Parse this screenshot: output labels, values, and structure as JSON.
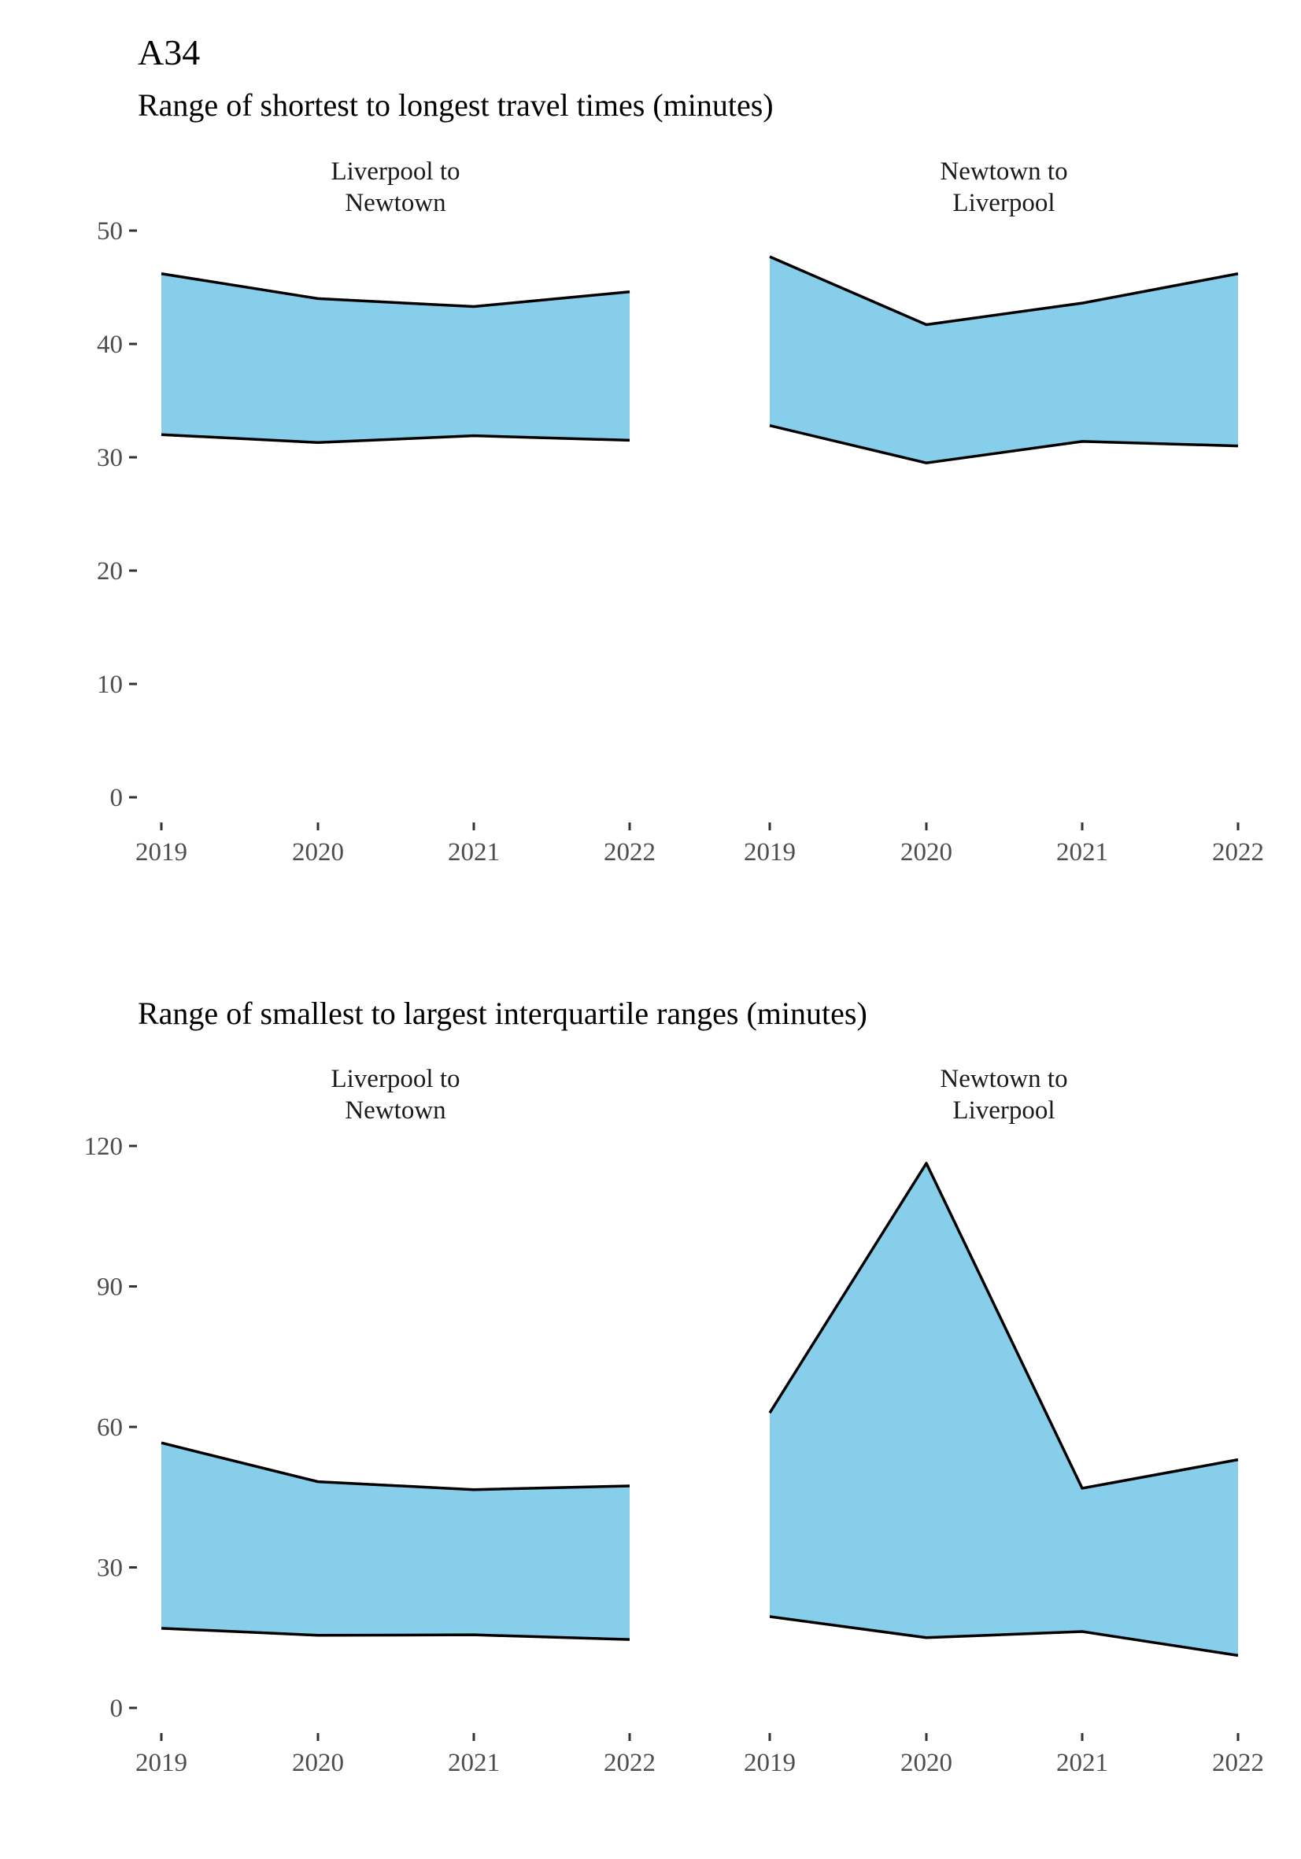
{
  "title": "A34",
  "colors": {
    "fill": "#87CEEB",
    "line": "#000000",
    "tick_text": "#4d4d4d"
  },
  "chart_data": [
    {
      "type": "area",
      "subtitle": "Range of shortest to longest travel times (minutes)",
      "ylim": [
        0,
        50
      ],
      "yticks": [
        "0",
        "10",
        "20",
        "30",
        "40",
        "50"
      ],
      "grid": false,
      "panels": [
        {
          "strip": [
            "Liverpool to",
            "Newtown"
          ],
          "x": [
            "2019",
            "2020",
            "2021",
            "2022"
          ],
          "min": [
            32.0,
            31.3,
            31.9,
            31.5
          ],
          "max": [
            46.2,
            44.0,
            43.3,
            44.6
          ]
        },
        {
          "strip": [
            "Newtown to",
            "Liverpool"
          ],
          "x": [
            "2019",
            "2020",
            "2021",
            "2022"
          ],
          "min": [
            32.8,
            29.5,
            31.4,
            31.0
          ],
          "max": [
            47.7,
            41.7,
            43.6,
            46.2
          ]
        }
      ]
    },
    {
      "type": "area",
      "subtitle": "Range of smallest to largest interquartile ranges (minutes)",
      "ylim": [
        0,
        120
      ],
      "yticks": [
        "0",
        "30",
        "60",
        "90",
        "120"
      ],
      "grid": false,
      "panels": [
        {
          "strip": [
            "Liverpool to",
            "Newtown"
          ],
          "x": [
            "2019",
            "2020",
            "2021",
            "2022"
          ],
          "min": [
            17.0,
            15.5,
            15.6,
            14.6
          ],
          "max": [
            56.6,
            48.3,
            46.6,
            47.4
          ]
        },
        {
          "strip": [
            "Newtown to",
            "Liverpool"
          ],
          "x": [
            "2019",
            "2020",
            "2021",
            "2022"
          ],
          "min": [
            19.5,
            15.0,
            16.3,
            11.2
          ],
          "max": [
            63.0,
            116.3,
            46.9,
            53.0
          ]
        }
      ]
    }
  ]
}
